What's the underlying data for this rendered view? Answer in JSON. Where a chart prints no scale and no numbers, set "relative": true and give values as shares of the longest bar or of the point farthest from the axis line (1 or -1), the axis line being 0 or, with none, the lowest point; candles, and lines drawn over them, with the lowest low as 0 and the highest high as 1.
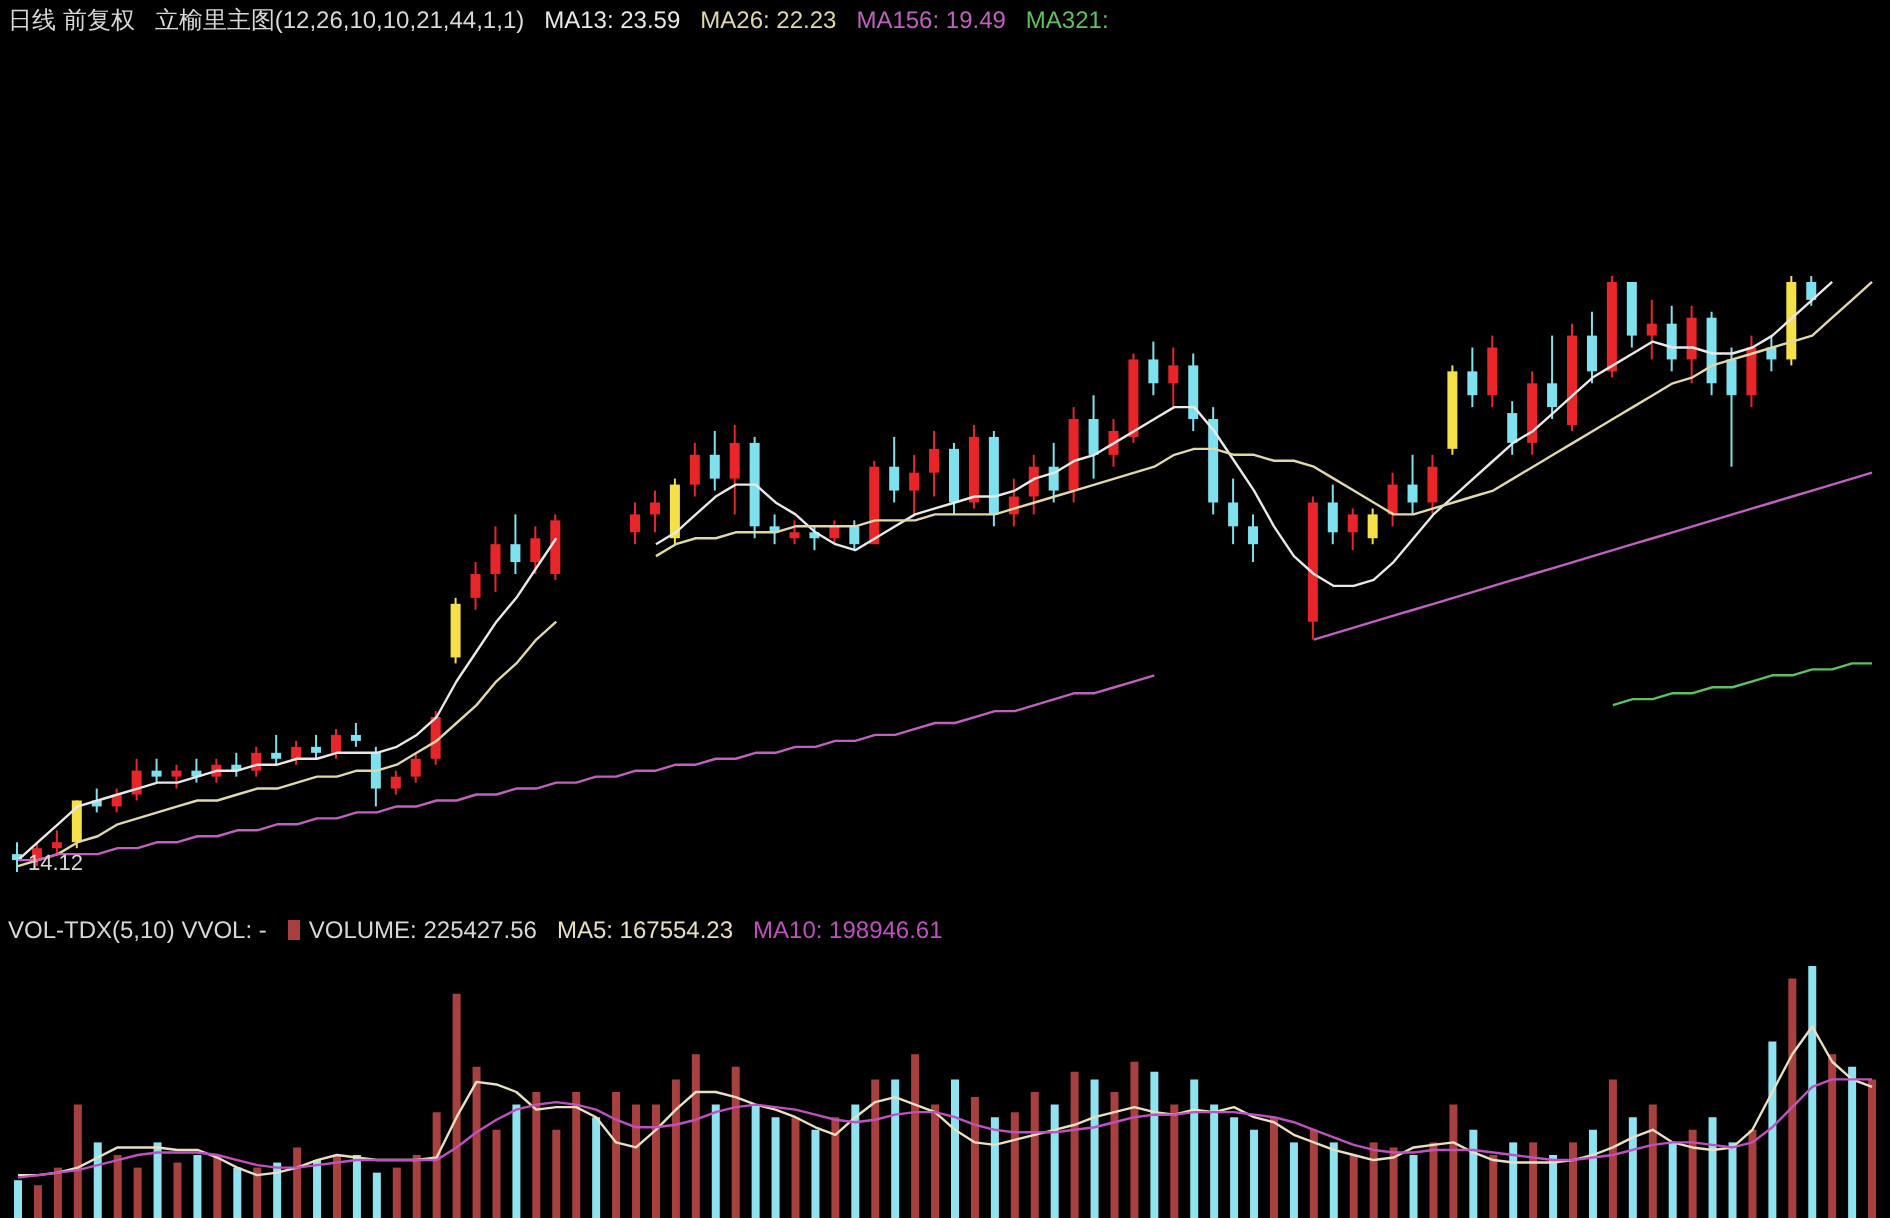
{
  "chart_data": [
    {
      "type": "candlestick",
      "title": "日线 前复权",
      "subtitle": "立榆里主图(12,26,10,10,21,44,1,1)",
      "relative": true,
      "legend": "top left",
      "annotations": [
        "14.12"
      ],
      "categories": [
        null,
        null,
        null,
        null,
        null,
        null,
        null,
        null,
        null,
        null,
        null,
        null,
        null,
        null,
        null,
        null,
        null,
        null,
        null,
        null,
        null,
        null,
        null,
        null,
        null,
        null,
        null,
        null,
        null,
        null,
        null,
        null,
        null,
        null,
        null,
        null,
        null,
        null,
        null,
        null,
        null,
        null,
        null,
        null,
        null,
        null,
        null,
        null,
        null,
        null,
        null,
        null,
        null,
        null,
        null,
        null,
        null,
        null,
        null,
        null,
        null,
        null,
        null,
        null,
        null,
        null,
        null,
        null,
        null,
        null,
        null,
        null,
        null,
        null,
        null,
        null,
        null,
        null,
        null,
        null,
        null,
        null,
        null,
        null,
        null,
        null,
        null,
        null,
        null,
        null,
        null,
        null,
        null,
        null
      ],
      "ohlc": [
        [
          0.03,
          0.05,
          0,
          0.02
        ],
        [
          0.02,
          0.05,
          0.01,
          0.04
        ],
        [
          0.04,
          0.07,
          0.03,
          0.05
        ],
        [
          0.05,
          0.12,
          0.04,
          0.12
        ],
        [
          0.12,
          0.14,
          0.1,
          0.11
        ],
        [
          0.11,
          0.14,
          0.1,
          0.13
        ],
        [
          0.13,
          0.19,
          0.12,
          0.17
        ],
        [
          0.17,
          0.19,
          0.15,
          0.16
        ],
        [
          0.16,
          0.18,
          0.14,
          0.17
        ],
        [
          0.17,
          0.19,
          0.15,
          0.16
        ],
        [
          0.16,
          0.19,
          0.15,
          0.18
        ],
        [
          0.18,
          0.2,
          0.16,
          0.17
        ],
        [
          0.17,
          0.21,
          0.16,
          0.2
        ],
        [
          0.2,
          0.23,
          0.18,
          0.19
        ],
        [
          0.19,
          0.22,
          0.18,
          0.21
        ],
        [
          0.21,
          0.23,
          0.19,
          0.2
        ],
        [
          0.2,
          0.24,
          0.19,
          0.23
        ],
        [
          0.23,
          0.25,
          0.21,
          0.22
        ],
        [
          0.2,
          0.21,
          0.11,
          0.14
        ],
        [
          0.14,
          0.17,
          0.13,
          0.16
        ],
        [
          0.16,
          0.2,
          0.15,
          0.19
        ],
        [
          0.19,
          0.27,
          0.18,
          0.26
        ],
        [
          0.36,
          0.46,
          0.35,
          0.45
        ],
        [
          0.46,
          0.52,
          0.44,
          0.5
        ],
        [
          0.5,
          0.58,
          0.47,
          0.55
        ],
        [
          0.55,
          0.6,
          0.5,
          0.52
        ],
        [
          0.52,
          0.58,
          0.5,
          0.56
        ],
        [
          0.5,
          0.6,
          0.49,
          0.59
        ],
        null,
        null,
        null,
        [
          0.57,
          0.62,
          0.55,
          0.6
        ],
        [
          0.6,
          0.64,
          0.57,
          0.62
        ],
        [
          0.56,
          0.66,
          0.55,
          0.65
        ],
        [
          0.65,
          0.72,
          0.63,
          0.7
        ],
        [
          0.7,
          0.74,
          0.64,
          0.66
        ],
        [
          0.66,
          0.75,
          0.6,
          0.72
        ],
        [
          0.72,
          0.73,
          0.56,
          0.58
        ],
        [
          0.58,
          0.6,
          0.55,
          0.57
        ],
        [
          0.56,
          0.59,
          0.55,
          0.57
        ],
        [
          0.57,
          0.58,
          0.54,
          0.56
        ],
        [
          0.56,
          0.59,
          0.55,
          0.58
        ],
        [
          0.58,
          0.59,
          0.54,
          0.55
        ],
        [
          0.55,
          0.69,
          0.55,
          0.68
        ],
        [
          0.68,
          0.73,
          0.62,
          0.64
        ],
        [
          0.64,
          0.7,
          0.6,
          0.67
        ],
        [
          0.67,
          0.74,
          0.63,
          0.71
        ],
        [
          0.71,
          0.72,
          0.6,
          0.62
        ],
        [
          0.62,
          0.75,
          0.61,
          0.73
        ],
        [
          0.73,
          0.74,
          0.58,
          0.6
        ],
        [
          0.6,
          0.66,
          0.58,
          0.63
        ],
        [
          0.63,
          0.7,
          0.6,
          0.68
        ],
        [
          0.68,
          0.72,
          0.62,
          0.64
        ],
        [
          0.64,
          0.78,
          0.62,
          0.76
        ],
        [
          0.76,
          0.8,
          0.66,
          0.7
        ],
        [
          0.7,
          0.76,
          0.68,
          0.74
        ],
        [
          0.73,
          0.87,
          0.72,
          0.86
        ],
        [
          0.86,
          0.89,
          0.8,
          0.82
        ],
        [
          0.82,
          0.88,
          0.78,
          0.85
        ],
        [
          0.85,
          0.87,
          0.74,
          0.76
        ],
        [
          0.76,
          0.78,
          0.6,
          0.62
        ],
        [
          0.62,
          0.66,
          0.55,
          0.58
        ],
        [
          0.58,
          0.6,
          0.52,
          0.55
        ],
        null,
        null,
        [
          0.42,
          0.63,
          0.39,
          0.62
        ],
        [
          0.62,
          0.65,
          0.55,
          0.57
        ],
        [
          0.57,
          0.61,
          0.54,
          0.6
        ],
        [
          0.56,
          0.61,
          0.55,
          0.6
        ],
        [
          0.6,
          0.67,
          0.58,
          0.65
        ],
        [
          0.65,
          0.7,
          0.6,
          0.62
        ],
        [
          0.62,
          0.7,
          0.6,
          0.68
        ],
        [
          0.71,
          0.85,
          0.7,
          0.84
        ],
        [
          0.84,
          0.88,
          0.78,
          0.8
        ],
        [
          0.8,
          0.9,
          0.78,
          0.88
        ],
        [
          0.77,
          0.79,
          0.7,
          0.72
        ],
        [
          0.72,
          0.84,
          0.7,
          0.82
        ],
        [
          0.82,
          0.9,
          0.76,
          0.78
        ],
        [
          0.75,
          0.92,
          0.74,
          0.9
        ],
        [
          0.9,
          0.94,
          0.82,
          0.84
        ],
        [
          0.84,
          1,
          0.83,
          0.99
        ],
        [
          0.99,
          0.99,
          0.88,
          0.9
        ],
        [
          0.9,
          0.96,
          0.86,
          0.92
        ],
        [
          0.92,
          0.95,
          0.84,
          0.86
        ],
        [
          0.86,
          0.95,
          0.82,
          0.93
        ],
        [
          0.93,
          0.94,
          0.8,
          0.82
        ],
        [
          0.86,
          0.88,
          0.68,
          0.8
        ],
        [
          0.8,
          0.9,
          0.78,
          0.88
        ],
        [
          0.88,
          0.9,
          0.84,
          0.86
        ],
        [
          0.86,
          1,
          0.85,
          0.99
        ],
        [
          0.99,
          1,
          0.95,
          0.96
        ],
        null,
        null,
        null
      ],
      "colors": [
        "#7fe0ee",
        "#e8262a",
        "#e8262a",
        "#f5e04a",
        "#7fe0ee",
        "#e8262a",
        "#e8262a",
        "#7fe0ee",
        "#e8262a",
        "#7fe0ee",
        "#e8262a",
        "#7fe0ee",
        "#e8262a",
        "#7fe0ee",
        "#e8262a",
        "#7fe0ee",
        "#e8262a",
        "#7fe0ee",
        "#7fe0ee",
        "#e8262a",
        "#e8262a",
        "#e8262a",
        "#f5e04a",
        "#e8262a",
        "#e8262a",
        "#7fe0ee",
        "#e8262a",
        "#e8262a",
        null,
        null,
        null,
        "#e8262a",
        "#e8262a",
        "#f5e04a",
        "#e8262a",
        "#7fe0ee",
        "#e8262a",
        "#7fe0ee",
        "#7fe0ee",
        "#e8262a",
        "#7fe0ee",
        "#e8262a",
        "#7fe0ee",
        "#e8262a",
        "#7fe0ee",
        "#e8262a",
        "#e8262a",
        "#7fe0ee",
        "#e8262a",
        "#7fe0ee",
        "#e8262a",
        "#e8262a",
        "#7fe0ee",
        "#e8262a",
        "#7fe0ee",
        "#e8262a",
        "#e8262a",
        "#7fe0ee",
        "#e8262a",
        "#7fe0ee",
        "#7fe0ee",
        "#7fe0ee",
        "#7fe0ee",
        null,
        null,
        "#e8262a",
        "#7fe0ee",
        "#e8262a",
        "#f5e04a",
        "#e8262a",
        "#7fe0ee",
        "#e8262a",
        "#f5e04a",
        "#7fe0ee",
        "#e8262a",
        "#7fe0ee",
        "#e8262a",
        "#7fe0ee",
        "#e8262a",
        "#7fe0ee",
        "#e8262a",
        "#7fe0ee",
        "#e8262a",
        "#7fe0ee",
        "#e8262a",
        "#7fe0ee",
        "#7fe0ee",
        "#e8262a",
        "#7fe0ee",
        "#f5e04a",
        "#7fe0ee",
        null,
        null,
        null
      ],
      "series": [
        {
          "type": "line",
          "name": "MA13: 23.59",
          "color": "#e8e8e8",
          "values": [
            0.02,
            0.05,
            0.08,
            0.11,
            0.12,
            0.13,
            0.14,
            0.15,
            0.15,
            0.16,
            0.17,
            0.17,
            0.18,
            0.18,
            0.19,
            0.19,
            0.2,
            0.2,
            0.2,
            0.21,
            0.23,
            0.26,
            0.32,
            0.37,
            0.42,
            0.46,
            0.51,
            0.56,
            null,
            null,
            null,
            null,
            0.55,
            0.57,
            0.6,
            0.63,
            0.65,
            0.65,
            0.62,
            0.6,
            0.57,
            0.55,
            0.54,
            0.56,
            0.58,
            0.6,
            0.61,
            0.62,
            0.63,
            0.63,
            0.64,
            0.66,
            0.67,
            0.69,
            0.7,
            0.72,
            0.74,
            0.76,
            0.78,
            0.78,
            0.74,
            0.69,
            0.64,
            0.58,
            0.53,
            0.5,
            0.48,
            0.48,
            0.49,
            0.52,
            0.56,
            0.6,
            0.63,
            0.66,
            0.69,
            0.72,
            0.74,
            0.77,
            0.8,
            0.83,
            0.85,
            0.87,
            0.89,
            0.88,
            0.88,
            0.87,
            0.87,
            0.88,
            0.9,
            0.93,
            0.96,
            0.99,
            null,
            null
          ]
        },
        {
          "type": "line",
          "name": "MA26: 22.23",
          "color": "#e0d8a8",
          "values": [
            0.01,
            0.02,
            0.03,
            0.05,
            0.06,
            0.08,
            0.09,
            0.1,
            0.11,
            0.12,
            0.12,
            0.13,
            0.14,
            0.14,
            0.15,
            0.16,
            0.16,
            0.17,
            0.17,
            0.18,
            0.2,
            0.22,
            0.25,
            0.28,
            0.32,
            0.35,
            0.39,
            0.42,
            null,
            null,
            null,
            null,
            0.53,
            0.55,
            0.56,
            0.56,
            0.57,
            0.57,
            0.57,
            0.58,
            0.58,
            0.58,
            0.58,
            0.59,
            0.59,
            0.59,
            0.6,
            0.6,
            0.6,
            0.6,
            0.61,
            0.62,
            0.63,
            0.64,
            0.65,
            0.66,
            0.67,
            0.68,
            0.7,
            0.71,
            0.71,
            0.7,
            0.7,
            0.69,
            0.69,
            0.68,
            0.66,
            0.64,
            0.62,
            0.6,
            0.6,
            0.61,
            0.62,
            0.63,
            0.64,
            0.66,
            0.68,
            0.7,
            0.72,
            0.74,
            0.76,
            0.78,
            0.8,
            0.82,
            0.83,
            0.85,
            0.86,
            0.87,
            0.88,
            0.89,
            0.9,
            0.93,
            0.96,
            0.99
          ]
        },
        {
          "type": "line",
          "name": "MA156: 19.49",
          "color": "#c060c0",
          "values": [
            0.02,
            0.02,
            0.03,
            0.03,
            0.03,
            0.04,
            0.04,
            0.05,
            0.05,
            0.06,
            0.06,
            0.07,
            0.07,
            0.08,
            0.08,
            0.09,
            0.09,
            0.1,
            0.1,
            0.11,
            0.11,
            0.12,
            0.12,
            0.13,
            0.13,
            0.14,
            0.14,
            0.15,
            0.15,
            0.16,
            0.16,
            0.17,
            0.17,
            0.18,
            0.18,
            0.19,
            0.19,
            0.2,
            0.2,
            0.21,
            0.21,
            0.22,
            0.22,
            0.23,
            0.23,
            0.24,
            0.25,
            0.25,
            0.26,
            0.27,
            0.27,
            0.28,
            0.29,
            0.3,
            0.3,
            0.31,
            0.32,
            0.33,
            null,
            null,
            null,
            null,
            null,
            null,
            null,
            0.39,
            0.4,
            0.41,
            0.42,
            0.43,
            0.44,
            0.45,
            0.46,
            0.47,
            0.48,
            0.49,
            0.5,
            0.51,
            0.52,
            0.53,
            0.54,
            0.55,
            0.56,
            0.57,
            0.58,
            0.59,
            0.6,
            0.61,
            0.62,
            0.63,
            0.64,
            0.65,
            0.66,
            0.67
          ]
        },
        {
          "type": "line",
          "name": "MA321:",
          "color": "#60c060",
          "values": [
            null,
            null,
            null,
            null,
            null,
            null,
            null,
            null,
            null,
            null,
            null,
            null,
            null,
            null,
            null,
            null,
            null,
            null,
            null,
            null,
            null,
            null,
            null,
            null,
            null,
            null,
            null,
            null,
            null,
            null,
            null,
            null,
            null,
            null,
            null,
            null,
            null,
            null,
            null,
            null,
            null,
            null,
            null,
            null,
            null,
            null,
            null,
            null,
            null,
            null,
            null,
            null,
            null,
            null,
            null,
            null,
            null,
            null,
            null,
            null,
            null,
            null,
            null,
            null,
            null,
            null,
            null,
            null,
            null,
            null,
            null,
            null,
            null,
            null,
            null,
            null,
            null,
            null,
            null,
            null,
            0.28,
            0.29,
            0.29,
            0.3,
            0.3,
            0.31,
            0.31,
            0.32,
            0.33,
            0.33,
            0.34,
            0.34,
            0.35,
            0.35
          ]
        }
      ]
    },
    {
      "type": "bar",
      "title": "VOL-TDX(5,10) VVOL: -",
      "relative": true,
      "legend": "top left",
      "categories": [
        null,
        null,
        null,
        null,
        null,
        null,
        null,
        null,
        null,
        null,
        null,
        null,
        null,
        null,
        null,
        null,
        null,
        null,
        null,
        null,
        null,
        null,
        null,
        null,
        null,
        null,
        null,
        null,
        null,
        null,
        null,
        null,
        null,
        null,
        null,
        null,
        null,
        null,
        null,
        null,
        null,
        null,
        null,
        null,
        null,
        null,
        null,
        null,
        null,
        null,
        null,
        null,
        null,
        null,
        null,
        null,
        null,
        null,
        null,
        null,
        null,
        null,
        null,
        null,
        null,
        null,
        null,
        null,
        null,
        null,
        null,
        null,
        null,
        null,
        null,
        null,
        null,
        null,
        null,
        null,
        null,
        null,
        null,
        null,
        null,
        null,
        null,
        null,
        null,
        null,
        null,
        null,
        null,
        null
      ],
      "series": [
        {
          "name": "VOLUME: 225427.56",
          "color": "#a8403f",
          "values": [
            0.15,
            0.13,
            0.2,
            0.45,
            0.3,
            0.25,
            0.2,
            0.3,
            0.22,
            0.25,
            0.25,
            0.2,
            0.2,
            0.22,
            0.28,
            0.23,
            0.25,
            0.25,
            0.18,
            0.2,
            0.25,
            0.42,
            0.89,
            0.6,
            0.35,
            0.45,
            0.5,
            0.35,
            0.5,
            0.4,
            0.5,
            0.45,
            0.45,
            0.55,
            0.65,
            0.45,
            0.6,
            0.45,
            0.4,
            0.4,
            0.35,
            0.4,
            0.45,
            0.55,
            0.55,
            0.65,
            0.45,
            0.55,
            0.48,
            0.4,
            0.42,
            0.5,
            0.45,
            0.58,
            0.55,
            0.5,
            0.62,
            0.58,
            0.45,
            0.55,
            0.45,
            0.4,
            0.35,
            0.4,
            0.3,
            0.35,
            0.3,
            0.25,
            0.3,
            0.28,
            0.25,
            0.3,
            0.45,
            0.35,
            0.25,
            0.3,
            0.3,
            0.25,
            0.3,
            0.35,
            0.55,
            0.4,
            0.45,
            0.3,
            0.35,
            0.4,
            0.3,
            0.35,
            0.7,
            0.95,
            1,
            0.65,
            0.6,
            0.55
          ],
          "colors": [
            "#8fe3f0",
            "#a8403f",
            "#a8403f",
            "#a8403f",
            "#8fe3f0",
            "#a8403f",
            "#a8403f",
            "#8fe3f0",
            "#a8403f",
            "#8fe3f0",
            "#a8403f",
            "#8fe3f0",
            "#a8403f",
            "#8fe3f0",
            "#a8403f",
            "#8fe3f0",
            "#a8403f",
            "#8fe3f0",
            "#8fe3f0",
            "#a8403f",
            "#a8403f",
            "#a8403f",
            "#a8403f",
            "#a8403f",
            "#a8403f",
            "#8fe3f0",
            "#a8403f",
            "#a8403f",
            "#a8403f",
            "#8fe3f0",
            "#a8403f",
            "#a8403f",
            "#a8403f",
            "#a8403f",
            "#a8403f",
            "#8fe3f0",
            "#a8403f",
            "#8fe3f0",
            "#8fe3f0",
            "#a8403f",
            "#8fe3f0",
            "#a8403f",
            "#8fe3f0",
            "#a8403f",
            "#8fe3f0",
            "#a8403f",
            "#a8403f",
            "#8fe3f0",
            "#a8403f",
            "#8fe3f0",
            "#a8403f",
            "#a8403f",
            "#8fe3f0",
            "#a8403f",
            "#8fe3f0",
            "#a8403f",
            "#a8403f",
            "#8fe3f0",
            "#a8403f",
            "#8fe3f0",
            "#8fe3f0",
            "#8fe3f0",
            "#8fe3f0",
            "#a8403f",
            "#8fe3f0",
            "#a8403f",
            "#8fe3f0",
            "#a8403f",
            "#a8403f",
            "#a8403f",
            "#8fe3f0",
            "#a8403f",
            "#a8403f",
            "#8fe3f0",
            "#a8403f",
            "#8fe3f0",
            "#a8403f",
            "#8fe3f0",
            "#a8403f",
            "#8fe3f0",
            "#a8403f",
            "#8fe3f0",
            "#a8403f",
            "#8fe3f0",
            "#a8403f",
            "#8fe3f0",
            "#8fe3f0",
            "#a8403f",
            "#8fe3f0",
            "#a8403f",
            "#8fe3f0",
            "#a8403f",
            "#8fe3f0",
            "#a8403f"
          ]
        },
        {
          "type": "line",
          "name": "MA5: 167554.23",
          "color": "#e8e0c0",
          "values": [
            0.17,
            0.17,
            0.18,
            0.2,
            0.24,
            0.28,
            0.28,
            0.28,
            0.27,
            0.27,
            0.24,
            0.2,
            0.17,
            0.18,
            0.2,
            0.23,
            0.25,
            0.24,
            0.23,
            0.23,
            0.23,
            0.24,
            0.4,
            0.54,
            0.53,
            0.5,
            0.43,
            0.44,
            0.44,
            0.4,
            0.3,
            0.28,
            0.35,
            0.43,
            0.5,
            0.5,
            0.48,
            0.45,
            0.43,
            0.4,
            0.36,
            0.33,
            0.4,
            0.46,
            0.48,
            0.45,
            0.42,
            0.35,
            0.3,
            0.29,
            0.31,
            0.33,
            0.35,
            0.37,
            0.4,
            0.42,
            0.44,
            0.42,
            0.41,
            0.43,
            0.42,
            0.44,
            0.4,
            0.38,
            0.33,
            0.3,
            0.27,
            0.25,
            0.23,
            0.24,
            0.28,
            0.29,
            0.3,
            0.26,
            0.23,
            0.22,
            0.22,
            0.22,
            0.23,
            0.25,
            0.28,
            0.32,
            0.35,
            0.3,
            0.28,
            0.27,
            0.28,
            0.35,
            0.5,
            0.65,
            0.76,
            0.62,
            0.55,
            0.52
          ]
        },
        {
          "type": "line",
          "name": "MA10: 198946.61",
          "color": "#c050c0",
          "values": [
            0.16,
            0.17,
            0.18,
            0.19,
            0.21,
            0.23,
            0.25,
            0.26,
            0.26,
            0.26,
            0.25,
            0.23,
            0.21,
            0.2,
            0.2,
            0.21,
            0.22,
            0.23,
            0.23,
            0.23,
            0.23,
            0.23,
            0.28,
            0.34,
            0.39,
            0.43,
            0.45,
            0.46,
            0.45,
            0.43,
            0.39,
            0.36,
            0.36,
            0.37,
            0.39,
            0.42,
            0.44,
            0.45,
            0.44,
            0.43,
            0.41,
            0.39,
            0.38,
            0.39,
            0.41,
            0.42,
            0.42,
            0.4,
            0.37,
            0.35,
            0.34,
            0.34,
            0.34,
            0.35,
            0.36,
            0.38,
            0.4,
            0.41,
            0.41,
            0.42,
            0.42,
            0.42,
            0.41,
            0.4,
            0.38,
            0.35,
            0.32,
            0.29,
            0.27,
            0.26,
            0.26,
            0.27,
            0.27,
            0.27,
            0.26,
            0.25,
            0.24,
            0.23,
            0.23,
            0.24,
            0.25,
            0.27,
            0.29,
            0.3,
            0.3,
            0.29,
            0.28,
            0.3,
            0.36,
            0.44,
            0.52,
            0.55,
            0.55,
            0.55
          ]
        }
      ]
    }
  ]
}
